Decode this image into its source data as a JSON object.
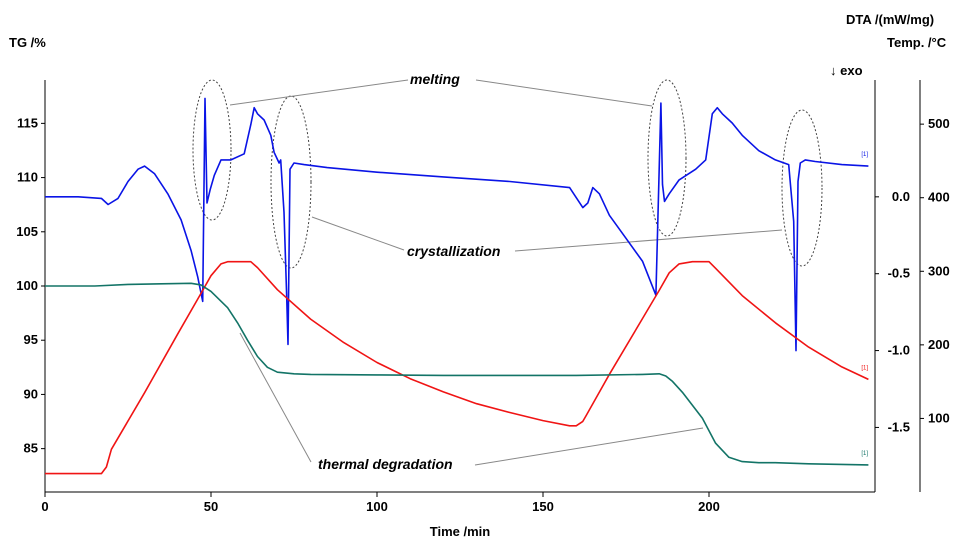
{
  "chart_data": {
    "type": "line",
    "title": "",
    "xlabel": "Time /min",
    "xlim": [
      0,
      250
    ],
    "x_ticks": [
      "0",
      "50",
      "100",
      "150",
      "200"
    ],
    "axes": {
      "tg": {
        "label": "TG /%",
        "ylim": [
          81,
          119
        ],
        "ticks": [
          "85",
          "90",
          "95",
          "100",
          "105",
          "110",
          "115"
        ]
      },
      "dta": {
        "label": "DTA /(mW/mg)",
        "sublabel": "↓ exo",
        "ylim": [
          -1.92,
          0.76
        ],
        "ticks": [
          "0.0",
          "-0.5",
          "-1.0",
          "-1.5"
        ]
      },
      "temp": {
        "label": "Temp. /°C",
        "ylim": [
          0,
          560
        ],
        "ticks": [
          "100",
          "200",
          "300",
          "400",
          "500"
        ]
      }
    },
    "series": [
      {
        "key": "dta",
        "axis": "dta",
        "color": "#0a14e6",
        "marker": "[1]",
        "x": [
          0,
          10,
          17,
          19,
          22,
          25,
          28,
          30,
          33,
          37,
          41,
          44,
          46,
          47.5,
          48.2,
          48.8,
          49.8,
          51,
          53,
          56,
          60,
          62,
          63,
          64,
          66,
          68,
          69,
          70.5,
          71,
          72,
          72.8,
          73.2,
          73.8,
          75,
          78,
          85,
          100,
          120,
          140,
          158,
          162,
          163.5,
          165,
          167,
          170,
          175,
          180,
          184,
          185.5,
          186,
          186.6,
          188,
          191,
          196,
          199,
          201,
          202.5,
          204,
          207,
          210,
          215,
          220,
          224,
          225.5,
          226.2,
          226.8,
          227.5,
          229,
          232,
          240,
          248
        ],
        "y": [
          0.0,
          0.0,
          -0.01,
          -0.05,
          -0.01,
          0.1,
          0.18,
          0.2,
          0.15,
          0.02,
          -0.15,
          -0.35,
          -0.52,
          -0.68,
          0.64,
          -0.04,
          0.05,
          0.14,
          0.24,
          0.24,
          0.28,
          0.47,
          0.58,
          0.54,
          0.5,
          0.4,
          0.29,
          0.22,
          0.24,
          -0.1,
          -0.65,
          -0.96,
          0.18,
          0.22,
          0.21,
          0.19,
          0.16,
          0.13,
          0.1,
          0.06,
          -0.07,
          -0.04,
          0.06,
          0.02,
          -0.12,
          -0.27,
          -0.42,
          -0.64,
          0.61,
          0.08,
          -0.03,
          0.02,
          0.11,
          0.18,
          0.24,
          0.54,
          0.58,
          0.54,
          0.48,
          0.4,
          0.3,
          0.24,
          0.21,
          -0.16,
          -1.0,
          0.1,
          0.22,
          0.24,
          0.23,
          0.21,
          0.2
        ]
      },
      {
        "key": "temp",
        "axis": "temp",
        "color": "#f01414",
        "marker": "[1]",
        "x": [
          0,
          17,
          18.5,
          20,
          30,
          40,
          47,
          50,
          53,
          55,
          58,
          62,
          64,
          70,
          80,
          90,
          100,
          110,
          120,
          130,
          140,
          150,
          158,
          160,
          162,
          163,
          170,
          180,
          185,
          188,
          191,
          195,
          198,
          200,
          202,
          210,
          220,
          230,
          240,
          248
        ],
        "y": [
          25,
          25,
          34,
          58,
          135,
          215,
          270,
          294,
          310,
          313,
          313,
          313,
          305,
          275,
          235,
          203,
          176,
          154,
          136,
          120,
          108,
          97,
          90,
          90,
          96,
          104,
          160,
          236,
          274,
          298,
          310,
          313,
          313,
          313,
          304,
          267,
          230,
          197,
          170,
          153
        ]
      },
      {
        "key": "tg",
        "axis": "tg",
        "color": "#137467",
        "marker": "[1]",
        "x": [
          0,
          15,
          25,
          35,
          44,
          47,
          50,
          55,
          58,
          61,
          64,
          67,
          70,
          75,
          80,
          100,
          120,
          140,
          160,
          180,
          185,
          187,
          189,
          192,
          195,
          198,
          202,
          206,
          210,
          215,
          220,
          230,
          240,
          248
        ],
        "y": [
          100.0,
          100.0,
          100.15,
          100.2,
          100.25,
          100.1,
          99.5,
          98.0,
          96.6,
          95.0,
          93.5,
          92.5,
          92.05,
          91.9,
          91.85,
          91.8,
          91.75,
          91.75,
          91.75,
          91.85,
          91.9,
          91.7,
          91.2,
          90.2,
          89.0,
          87.8,
          85.5,
          84.2,
          83.8,
          83.7,
          83.7,
          83.6,
          83.55,
          83.5
        ]
      }
    ],
    "annotations": [
      {
        "id": "melting",
        "text": "melting"
      },
      {
        "id": "crystallization",
        "text": "crystallization"
      },
      {
        "id": "thermal_degradation",
        "text": "thermal degradation"
      }
    ]
  }
}
